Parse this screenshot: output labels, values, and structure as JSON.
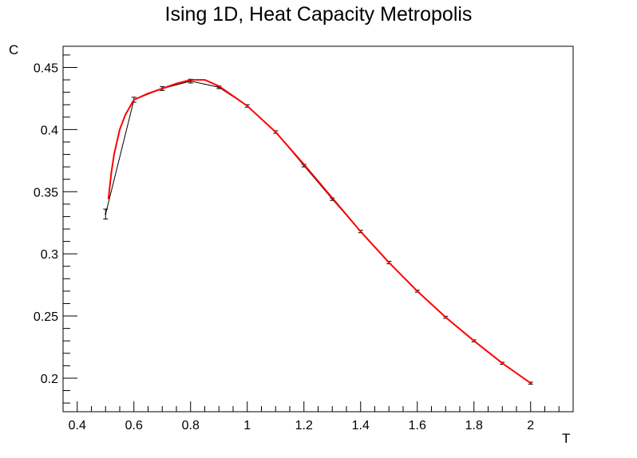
{
  "chart_data": {
    "type": "line",
    "title": "Ising 1D, Heat Capacity Metropolis",
    "xlabel": "T",
    "ylabel": "C",
    "xlim": [
      0.35,
      2.15
    ],
    "ylim": [
      0.173,
      0.467
    ],
    "x_ticks": [
      0.4,
      0.6,
      0.8,
      1,
      1.2,
      1.4,
      1.6,
      1.8,
      2
    ],
    "x_tick_labels": [
      "0.4",
      "0.6",
      "0.8",
      "1",
      "1.2",
      "1.4",
      "1.6",
      "1.8",
      "2"
    ],
    "y_ticks": [
      0.2,
      0.25,
      0.3,
      0.35,
      0.4,
      0.45
    ],
    "y_tick_labels": [
      "0.2",
      "0.25",
      "0.3",
      "0.35",
      "0.4",
      "0.45"
    ],
    "grid": false,
    "series": [
      {
        "color": "#000000",
        "style": "line with error bars",
        "x": [
          0.5,
          0.6,
          0.7,
          0.8,
          0.9,
          1.0,
          1.1,
          1.2,
          1.3,
          1.4,
          1.5,
          1.6,
          1.7,
          1.8,
          1.9,
          2.0
        ],
        "y": [
          0.332,
          0.424,
          0.433,
          0.439,
          0.434,
          0.419,
          0.398,
          0.371,
          0.344,
          0.318,
          0.293,
          0.27,
          0.249,
          0.23,
          0.212,
          0.196
        ],
        "yerr": [
          0.004,
          0.002,
          0.0015,
          0.0015,
          0.001,
          0.001,
          0.001,
          0.001,
          0.001,
          0.001,
          0.001,
          0.0008,
          0.0008,
          0.0008,
          0.0008,
          0.0008
        ]
      },
      {
        "color": "#ff0000",
        "style": "smooth line",
        "x": [
          0.51,
          0.52,
          0.53,
          0.55,
          0.57,
          0.6,
          0.65,
          0.7,
          0.75,
          0.8,
          0.85,
          0.9,
          0.95,
          1.0,
          1.1,
          1.2,
          1.3,
          1.4,
          1.5,
          1.6,
          1.7,
          1.8,
          1.9,
          2.0
        ],
        "y": [
          0.344,
          0.365,
          0.38,
          0.4,
          0.412,
          0.424,
          0.429,
          0.433,
          0.437,
          0.44,
          0.44,
          0.435,
          0.427,
          0.419,
          0.398,
          0.372,
          0.345,
          0.318,
          0.293,
          0.27,
          0.249,
          0.23,
          0.212,
          0.196
        ]
      }
    ]
  }
}
